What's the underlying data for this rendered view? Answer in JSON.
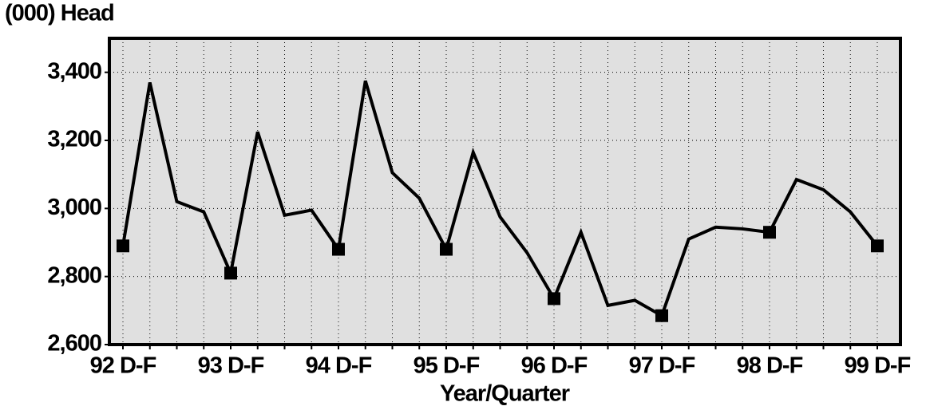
{
  "chart_data": {
    "type": "line",
    "y_label": "(000) Head",
    "x_label": "Year/Quarter",
    "categories": [
      "92 D-F",
      null,
      null,
      null,
      "93 D-F",
      null,
      null,
      null,
      "94 D-F",
      null,
      null,
      null,
      "95 D-F",
      null,
      null,
      null,
      "96 D-F",
      null,
      null,
      null,
      "97 D-F",
      null,
      null,
      null,
      "98 D-F",
      null,
      null,
      null,
      "99 D-F"
    ],
    "values": [
      2890,
      3370,
      3020,
      2990,
      2810,
      3225,
      2980,
      2995,
      2880,
      3375,
      3105,
      3030,
      2880,
      3165,
      2975,
      2870,
      2735,
      2930,
      2715,
      2730,
      2685,
      2910,
      2945,
      2940,
      2930,
      3085,
      3055,
      2990,
      2890
    ],
    "color": "#000000",
    "ylim": [
      2600,
      3500
    ],
    "yticks": [
      {
        "value": 2600,
        "label": "2,600"
      },
      {
        "value": 2800,
        "label": "2,800"
      },
      {
        "value": 3000,
        "label": "3,000"
      },
      {
        "value": 3200,
        "label": "3,200"
      },
      {
        "value": 3400,
        "label": "3,400"
      }
    ],
    "grid": true
  }
}
